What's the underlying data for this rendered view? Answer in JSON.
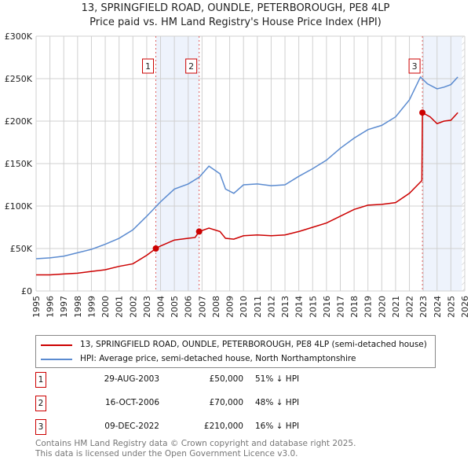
{
  "chart_data": {
    "type": "line",
    "title": "13, SPRINGFIELD ROAD, OUNDLE, PETERBOROUGH, PE8 4LP",
    "subtitle": "Price paid vs. HM Land Registry's House Price Index (HPI)",
    "xlim": [
      1995,
      2026
    ],
    "ylim": [
      0,
      300000
    ],
    "x_ticks": [
      "1995",
      "1996",
      "1997",
      "1998",
      "1999",
      "2000",
      "2001",
      "2002",
      "2003",
      "2004",
      "2005",
      "2006",
      "2007",
      "2008",
      "2009",
      "2010",
      "2011",
      "2012",
      "2013",
      "2014",
      "2015",
      "2016",
      "2017",
      "2018",
      "2019",
      "2020",
      "2021",
      "2022",
      "2023",
      "2024",
      "2025",
      "2026"
    ],
    "y_ticks": [
      {
        "v": 0,
        "label": "£0"
      },
      {
        "v": 50000,
        "label": "£50K"
      },
      {
        "v": 100000,
        "label": "£100K"
      },
      {
        "v": 150000,
        "label": "£150K"
      },
      {
        "v": 200000,
        "label": "£200K"
      },
      {
        "v": 250000,
        "label": "£250K"
      },
      {
        "v": 300000,
        "label": "£300K"
      }
    ],
    "grid": true,
    "series": [
      {
        "name": "13, SPRINGFIELD ROAD, OUNDLE, PETERBOROUGH, PE8 4LP (semi-detached house)",
        "color": "#cc0000",
        "x": [
          1995,
          1996,
          1997,
          1998,
          1999,
          2000,
          2001,
          2002,
          2003,
          2003.66,
          2004,
          2005,
          2006,
          2006.5,
          2006.79,
          2007.5,
          2008.3,
          2008.7,
          2009.3,
          2010,
          2011,
          2012,
          2013,
          2014,
          2015,
          2016,
          2017,
          2018,
          2019,
          2020,
          2021,
          2022,
          2022.9,
          2022.94,
          2023.5,
          2024,
          2024.5,
          2025,
          2025.5
        ],
        "y": [
          19000,
          19000,
          20000,
          21000,
          23000,
          25000,
          29000,
          32000,
          42000,
          50000,
          53000,
          60000,
          62000,
          63000,
          70000,
          74000,
          70000,
          62000,
          61000,
          65000,
          66000,
          65000,
          66000,
          70000,
          75000,
          80000,
          88000,
          96000,
          101000,
          102000,
          104000,
          115000,
          130000,
          210000,
          205000,
          197000,
          200000,
          201000,
          210000
        ]
      },
      {
        "name": "HPI: Average price, semi-detached house, North Northamptonshire",
        "color": "#5b8bd0",
        "x": [
          1995,
          1996,
          1997,
          1998,
          1999,
          2000,
          2001,
          2002,
          2003,
          2004,
          2005,
          2006,
          2006.8,
          2007.5,
          2008.3,
          2008.7,
          2009.3,
          2010,
          2011,
          2012,
          2013,
          2014,
          2015,
          2016,
          2017,
          2018,
          2019,
          2020,
          2021,
          2022,
          2022.8,
          2023.3,
          2024,
          2024.5,
          2025,
          2025.5
        ],
        "y": [
          38000,
          39000,
          41000,
          45000,
          49000,
          55000,
          62000,
          72000,
          88000,
          105000,
          120000,
          126000,
          134000,
          147000,
          138000,
          120000,
          115000,
          125000,
          126000,
          124000,
          125000,
          135000,
          144000,
          154000,
          168000,
          180000,
          190000,
          195000,
          205000,
          225000,
          252000,
          244000,
          238000,
          240000,
          243000,
          252000
        ]
      }
    ],
    "sales": [
      {
        "id": "1",
        "x": 2003.66,
        "y": 50000,
        "date": "29-AUG-2003",
        "price": "£50,000",
        "hpi": "51% ↓ HPI"
      },
      {
        "id": "2",
        "x": 2006.79,
        "y": 70000,
        "date": "16-OCT-2006",
        "price": "£70,000",
        "hpi": "48% ↓ HPI"
      },
      {
        "id": "3",
        "x": 2022.94,
        "y": 210000,
        "date": "09-DEC-2022",
        "price": "£210,000",
        "hpi": "16% ↓ HPI"
      }
    ],
    "shaded": [
      [
        2003.66,
        2006.79
      ],
      [
        2022.94,
        2025.8
      ]
    ],
    "hatched_from": 2025.8,
    "legend_placement": "below"
  },
  "footer": [
    "Contains HM Land Registry data © Crown copyright and database right 2025.",
    "This data is licensed under the Open Government Licence v3.0."
  ]
}
